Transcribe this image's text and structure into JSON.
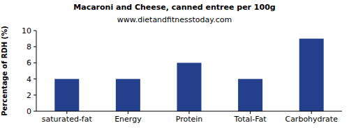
{
  "chart_data": {
    "type": "bar",
    "title": "Macaroni and Cheese, canned entree per 100g",
    "subtitle": "www.dietandfitnesstoday.com",
    "y_label": "Percentage of RDH (%)",
    "categories": [
      "saturated-fat",
      "Energy",
      "Protein",
      "Total-Fat",
      "Carbohydrate"
    ],
    "values": [
      4,
      4,
      6,
      4,
      9
    ],
    "color": "#243f8c",
    "ylim": [
      0,
      10
    ],
    "yticks": [
      0,
      2,
      4,
      6,
      8,
      10
    ],
    "grid": false
  }
}
